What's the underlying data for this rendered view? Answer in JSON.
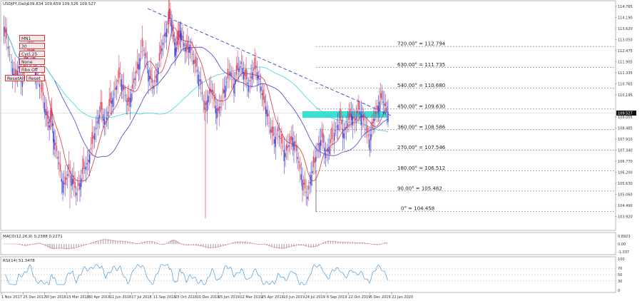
{
  "header": {
    "symbol_label": "USDJPY,Daily",
    "ohlc": "109.834 109.659 109.526 109.527"
  },
  "buttons": [
    "Cycl. 0",
    "Cycl. 1 30",
    "Cycl. 2 25",
    "Cycl. 3",
    "Cycl. 4 Fibo Off",
    "ResetAll",
    "Reset"
  ],
  "button_labels": [
    "MN1",
    "30",
    "Cycl.25",
    "None",
    "Fibo Off",
    "ResetAll",
    "Reset"
  ],
  "fib_levels": [
    {
      "label": "720.00° = 112.794",
      "price": 112.794
    },
    {
      "label": "630.00° = 111.735",
      "price": 111.735
    },
    {
      "label": "540.00° = 110.680",
      "price": 110.68
    },
    {
      "label": "450.00° = 109.630",
      "price": 109.63
    },
    {
      "label": "360.00° = 108.586",
      "price": 108.586
    },
    {
      "label": "270.00° = 107.546",
      "price": 107.546
    },
    {
      "label": "180.00° = 106.512",
      "price": 106.512
    },
    {
      "label": "90.00° = 105.482",
      "price": 105.482
    },
    {
      "label": "0° = 104.458",
      "price": 104.458
    }
  ],
  "price_axis": [
    "114.765",
    "114.190",
    "113.620",
    "113.050",
    "112.475",
    "111.905",
    "111.335",
    "110.765",
    "110.195",
    "109.527",
    "109.055",
    "108.485",
    "107.910",
    "107.340",
    "106.770",
    "106.200",
    "105.630",
    "105.060",
    "104.490",
    "103.920"
  ],
  "current_price": "109.527",
  "macd": {
    "label": "MACD(12,26,9) 0.2388 0.2271",
    "axis": [
      "0.8923",
      "0.00",
      "-1.337"
    ]
  },
  "rsi": {
    "label": "RSI(14) 51.3478",
    "axis": [
      "100",
      "70",
      "50",
      "30",
      "0"
    ]
  },
  "x_axis": [
    "1 Nov 2017",
    "25 Dec 2017",
    "30 Jan 2018",
    "15 Mar 2018",
    "30 Apr 2018",
    "11 Jun 2018",
    "17 Jul 2018",
    "11 Sep 2018",
    "25 Oct 2018",
    "10 Dec 2018",
    "25 Jan 2019",
    "12 Mar 2019",
    "25 Apr 2019",
    "10 Jun 2019",
    "24 Jul 2019",
    "6 Sep 2019",
    "22 Oct 2019",
    "5 Dec 2019",
    "22 Jan 2020"
  ],
  "colors": {
    "candle": "#6a5acd",
    "candle_up": "#3b45d0",
    "candle_down": "#e0405a",
    "ma_fast": "#e03030",
    "ma_mid": "#3b45d0",
    "ma_slow": "#40d0e0",
    "trendline": "#4040c0",
    "zone": "#19e0d0",
    "rsi_line": "#2e8bd6",
    "macd_hist": "#b0b0b0",
    "macd_signal": "#e03030"
  },
  "chart_data": {
    "type": "line",
    "title": "USDJPY,Daily",
    "ylim": [
      103.6,
      115.0
    ],
    "x_range": [
      "1 Nov 2017",
      "22 Jan 2020"
    ],
    "series": [
      {
        "values": [
          [
            0,
            114.1
          ],
          [
            3,
            113.2
          ],
          [
            7,
            112.0
          ],
          [
            10,
            111.1
          ],
          [
            13,
            111.8
          ],
          [
            16,
            111.0
          ],
          [
            19,
            112.2
          ],
          [
            22,
            112.8
          ],
          [
            25,
            112.2
          ],
          [
            27,
            111.6
          ],
          [
            30,
            110.9
          ],
          [
            33,
            110.3
          ],
          [
            36,
            109.3
          ],
          [
            38,
            108.8
          ],
          [
            40,
            109.3
          ],
          [
            42,
            108.1
          ],
          [
            45,
            107.2
          ],
          [
            48,
            106.1
          ],
          [
            51,
            105.8
          ],
          [
            54,
            106.6
          ],
          [
            57,
            106.1
          ],
          [
            60,
            105.4
          ],
          [
            63,
            105.9
          ],
          [
            66,
            106.6
          ],
          [
            69,
            106.8
          ],
          [
            72,
            107.6
          ],
          [
            75,
            108.4
          ],
          [
            78,
            109.2
          ],
          [
            81,
            109.6
          ],
          [
            84,
            108.9
          ],
          [
            87,
            109.8
          ],
          [
            90,
            110.2
          ],
          [
            93,
            110.8
          ],
          [
            96,
            111.4
          ],
          [
            99,
            110.6
          ],
          [
            102,
            109.8
          ],
          [
            105,
            110.4
          ],
          [
            108,
            111.2
          ],
          [
            111,
            111.9
          ],
          [
            114,
            112.8
          ],
          [
            117,
            112.2
          ],
          [
            120,
            111.3
          ],
          [
            123,
            110.8
          ],
          [
            126,
            111.4
          ],
          [
            129,
            112.4
          ],
          [
            132,
            113.3
          ],
          [
            135,
            113.9
          ],
          [
            137,
            114.4
          ],
          [
            139,
            113.6
          ],
          [
            141,
            112.7
          ],
          [
            143,
            112.9
          ],
          [
            145,
            113.6
          ],
          [
            147,
            113.2
          ],
          [
            150,
            112.5
          ],
          [
            153,
            112.9
          ],
          [
            156,
            112.1
          ],
          [
            159,
            111.6
          ],
          [
            162,
            110.9
          ],
          [
            165,
            109.6
          ],
          [
            168,
            110.3
          ],
          [
            171,
            110.6
          ],
          [
            174,
            109.8
          ],
          [
            177,
            109.4
          ],
          [
            180,
            110.4
          ],
          [
            183,
            111.0
          ],
          [
            186,
            111.5
          ],
          [
            189,
            110.9
          ],
          [
            192,
            111.6
          ],
          [
            195,
            111.9
          ],
          [
            198,
            111.3
          ],
          [
            201,
            110.8
          ],
          [
            204,
            111.5
          ],
          [
            207,
            111.7
          ],
          [
            210,
            111.1
          ],
          [
            213,
            110.1
          ],
          [
            216,
            109.6
          ],
          [
            219,
            108.6
          ],
          [
            222,
            108.1
          ],
          [
            225,
            108.5
          ],
          [
            228,
            107.9
          ],
          [
            231,
            107.4
          ],
          [
            234,
            107.8
          ],
          [
            237,
            108.2
          ],
          [
            240,
            107.5
          ],
          [
            243,
            106.6
          ],
          [
            246,
            105.8
          ],
          [
            249,
            105.2
          ],
          [
            252,
            106.3
          ],
          [
            255,
            106.9
          ],
          [
            258,
            107.8
          ],
          [
            261,
            108.2
          ],
          [
            264,
            107.4
          ],
          [
            267,
            107.7
          ],
          [
            270,
            108.3
          ],
          [
            273,
            108.7
          ],
          [
            276,
            109.1
          ],
          [
            279,
            108.4
          ],
          [
            282,
            108.9
          ],
          [
            285,
            109.4
          ],
          [
            288,
            109.0
          ],
          [
            291,
            109.6
          ],
          [
            294,
            109.3
          ],
          [
            297,
            108.6
          ],
          [
            300,
            108.1
          ],
          [
            303,
            108.9
          ],
          [
            306,
            109.6
          ],
          [
            309,
            110.2
          ],
          [
            312,
            109.9
          ],
          [
            315,
            109.5
          ]
        ]
      }
    ]
  }
}
